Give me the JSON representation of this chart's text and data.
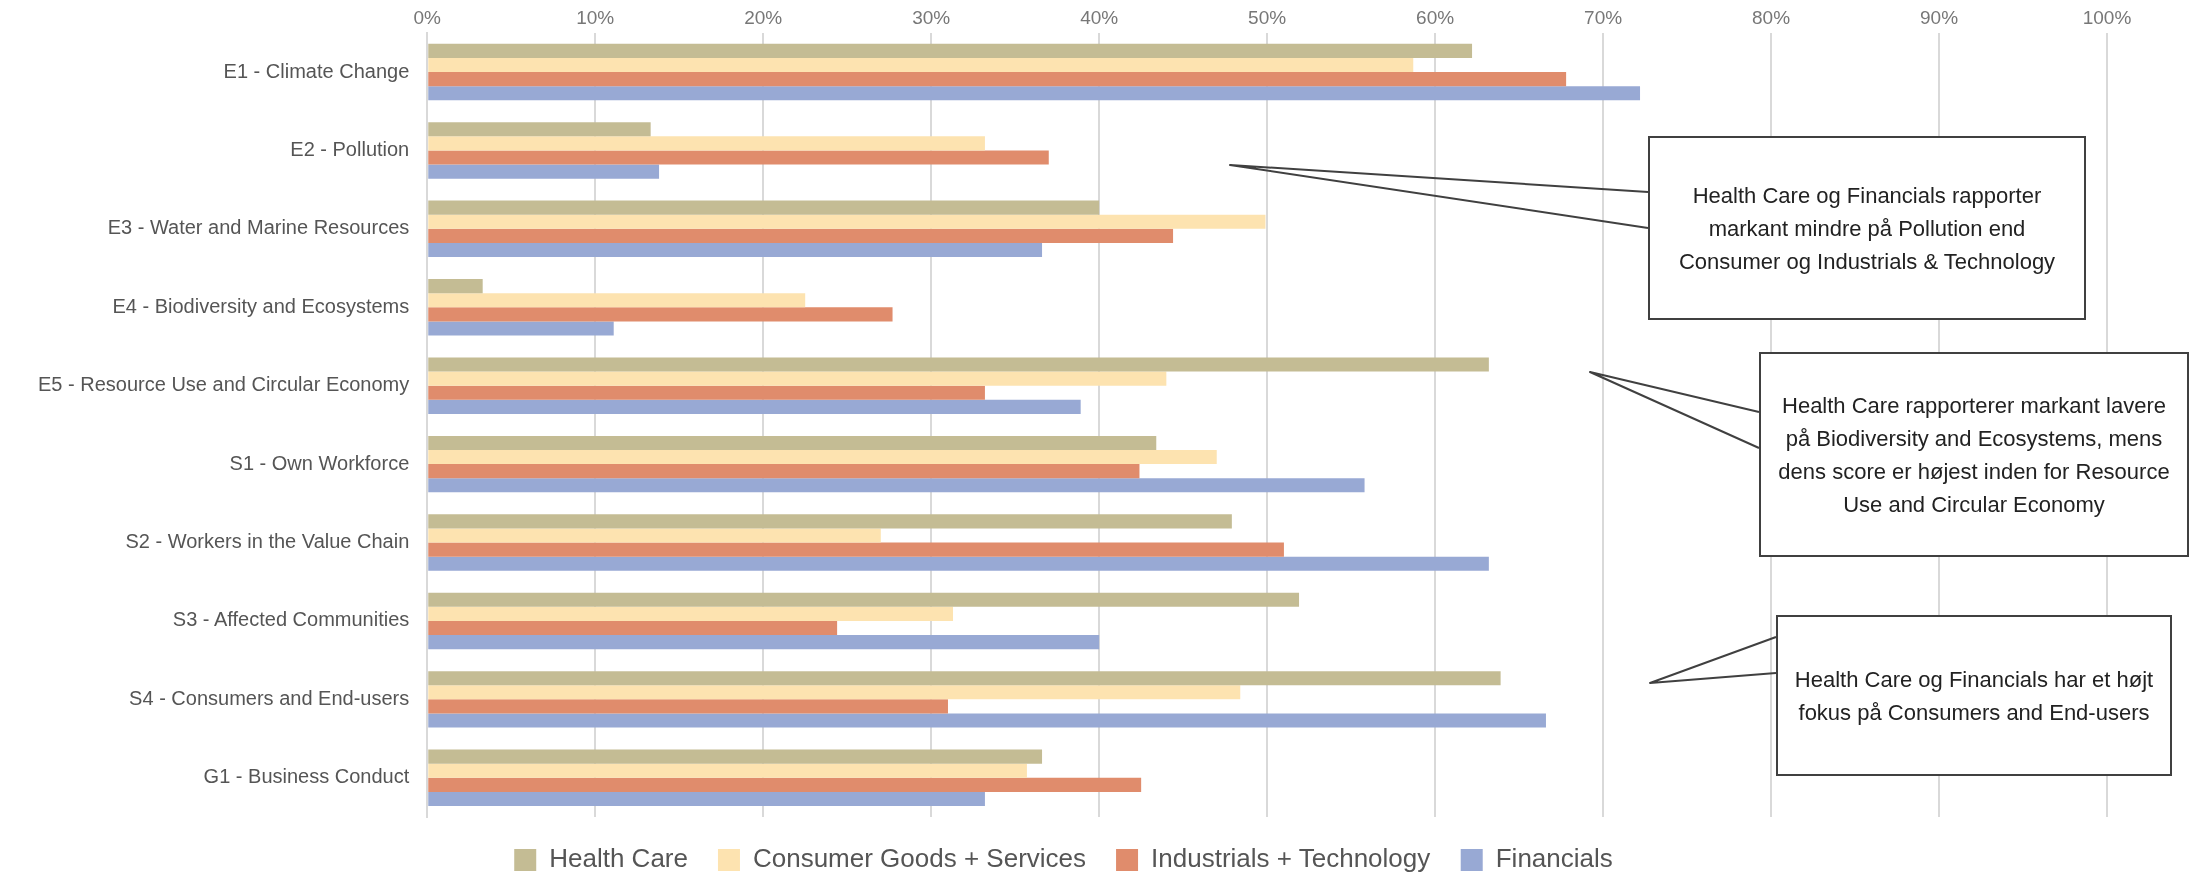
{
  "chart_data": {
    "type": "bar",
    "orientation": "horizontal",
    "categories": [
      "E1 - Climate Change",
      "E2 - Pollution",
      "E3 - Water and Marine Resources",
      "E4 - Biodiversity and Ecosystems",
      "E5 - Resource Use and Circular Economy",
      "S1 - Own Workforce",
      "S2 - Workers in the Value Chain",
      "S3 - Affected Communities",
      "S4 - Consumers and End-users",
      "G1 - Business Conduct"
    ],
    "series": [
      {
        "name": "Health Care",
        "color": "#c4bc94",
        "values": [
          62.2,
          13.3,
          40.0,
          3.3,
          63.2,
          43.4,
          47.9,
          51.9,
          63.9,
          36.6
        ]
      },
      {
        "name": "Consumer Goods + Services",
        "color": "#fde3b0",
        "values": [
          58.7,
          33.2,
          49.9,
          22.5,
          44.0,
          47.0,
          27.0,
          31.3,
          48.4,
          35.7
        ]
      },
      {
        "name": "Industrials + Technology",
        "color": "#e08c6c",
        "values": [
          67.8,
          37.0,
          44.4,
          27.7,
          33.2,
          42.4,
          51.0,
          24.4,
          31.0,
          42.5
        ]
      },
      {
        "name": "Financials",
        "color": "#98a9d4",
        "values": [
          72.2,
          13.8,
          36.6,
          11.1,
          38.9,
          55.8,
          63.2,
          40.0,
          66.6,
          33.2
        ]
      }
    ],
    "xlim": [
      0,
      100
    ],
    "xticks": [
      {
        "value": 0,
        "label": "0%"
      },
      {
        "value": 10,
        "label": "10%"
      },
      {
        "value": 20,
        "label": "20%"
      },
      {
        "value": 30,
        "label": "30%"
      },
      {
        "value": 40,
        "label": "40%"
      },
      {
        "value": 50,
        "label": "50%"
      },
      {
        "value": 60,
        "label": "60%"
      },
      {
        "value": 70,
        "label": "70%"
      },
      {
        "value": 80,
        "label": "80%"
      },
      {
        "value": 90,
        "label": "90%"
      },
      {
        "value": 100,
        "label": "100%"
      }
    ],
    "grid": "x",
    "legend": "bottom",
    "annotations": [
      "Health Care og Financials rapporter markant mindre på Pollution end Consumer og Industrials & Technology",
      "Health Care rapporterer markant lavere på Biodiversity and Ecosystems, mens dens score er højest inden for Resource Use and Circular Economy",
      "Health Care og Financials har et højt fokus på Consumers and End-users"
    ]
  }
}
